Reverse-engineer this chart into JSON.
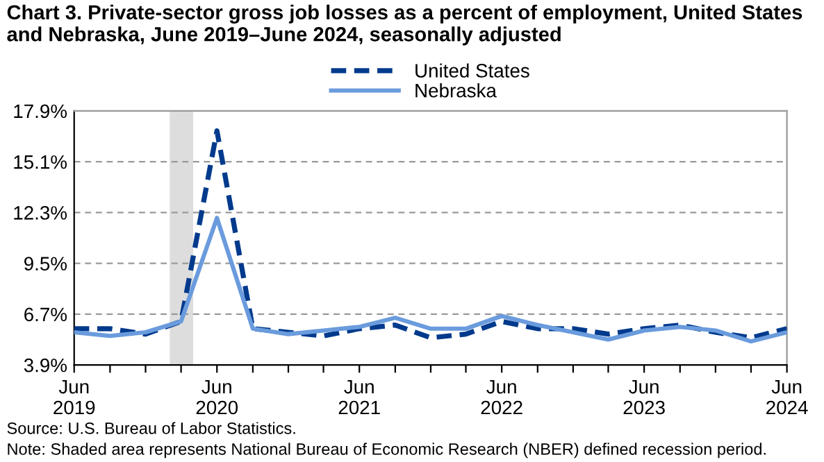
{
  "chart_data": {
    "type": "line",
    "title": "Chart 3. Private-sector gross job losses as a percent of employment, United States and Nebraska, June 2019–June 2024, seasonally adjusted",
    "x": [
      "2019-06",
      "2019-09",
      "2019-12",
      "2020-03",
      "2020-06",
      "2020-09",
      "2020-12",
      "2021-03",
      "2021-06",
      "2021-09",
      "2021-12",
      "2022-03",
      "2022-06",
      "2022-09",
      "2022-12",
      "2023-03",
      "2023-06",
      "2023-09",
      "2023-12",
      "2024-03",
      "2024-06"
    ],
    "series": [
      {
        "name": "United States",
        "color": "#003a8c",
        "line_style": "dashed",
        "values": [
          5.9,
          5.9,
          5.6,
          6.3,
          16.8,
          5.9,
          5.7,
          5.5,
          5.9,
          6.1,
          5.4,
          5.6,
          6.3,
          5.9,
          5.9,
          5.6,
          5.9,
          6.1,
          5.7,
          5.4,
          5.9
        ]
      },
      {
        "name": "Nebraska",
        "color": "#6a9bdd",
        "line_style": "solid",
        "values": [
          5.7,
          5.5,
          5.7,
          6.3,
          12.0,
          5.9,
          5.6,
          5.8,
          6.0,
          6.5,
          5.9,
          5.9,
          6.6,
          6.1,
          5.7,
          5.3,
          5.8,
          6.0,
          5.8,
          5.2,
          5.7
        ]
      }
    ],
    "ylim": [
      3.9,
      17.9
    ],
    "yticks": [
      {
        "value": 3.9,
        "label": "3.9%"
      },
      {
        "value": 6.7,
        "label": "6.7%"
      },
      {
        "value": 9.5,
        "label": "9.5%"
      },
      {
        "value": 12.3,
        "label": "12.3%"
      },
      {
        "value": 15.1,
        "label": "15.1%"
      },
      {
        "value": 17.9,
        "label": "17.9%"
      }
    ],
    "xlim": [
      "2019-06",
      "2024-06"
    ],
    "xticks": [
      {
        "value": "2019-06",
        "label": "Jun\n2019"
      },
      {
        "value": "2019-09",
        "label": null
      },
      {
        "value": "2019-12",
        "label": null
      },
      {
        "value": "2020-03",
        "label": null
      },
      {
        "value": "2020-06",
        "label": "Jun\n2020"
      },
      {
        "value": "2020-09",
        "label": null
      },
      {
        "value": "2020-12",
        "label": null
      },
      {
        "value": "2021-03",
        "label": null
      },
      {
        "value": "2021-06",
        "label": "Jun\n2021"
      },
      {
        "value": "2021-09",
        "label": null
      },
      {
        "value": "2021-12",
        "label": null
      },
      {
        "value": "2022-03",
        "label": null
      },
      {
        "value": "2022-06",
        "label": "Jun\n2022"
      },
      {
        "value": "2022-09",
        "label": null
      },
      {
        "value": "2022-12",
        "label": null
      },
      {
        "value": "2023-03",
        "label": null
      },
      {
        "value": "2023-06",
        "label": "Jun\n2023"
      },
      {
        "value": "2023-09",
        "label": null
      },
      {
        "value": "2023-12",
        "label": null
      },
      {
        "value": "2024-03",
        "label": null
      },
      {
        "value": "2024-06",
        "label": "Jun\n2024"
      }
    ],
    "bands": [
      {
        "axis": "x",
        "from": "2020-02",
        "to": "2020-04",
        "color": "#dddddd"
      }
    ],
    "grid": "y",
    "legend": "top",
    "annotations": [
      "Source: U.S. Bureau of Labor Statistics.",
      "Note: Shaded area represents National Bureau of Economic Research (NBER) defined recession period."
    ]
  }
}
